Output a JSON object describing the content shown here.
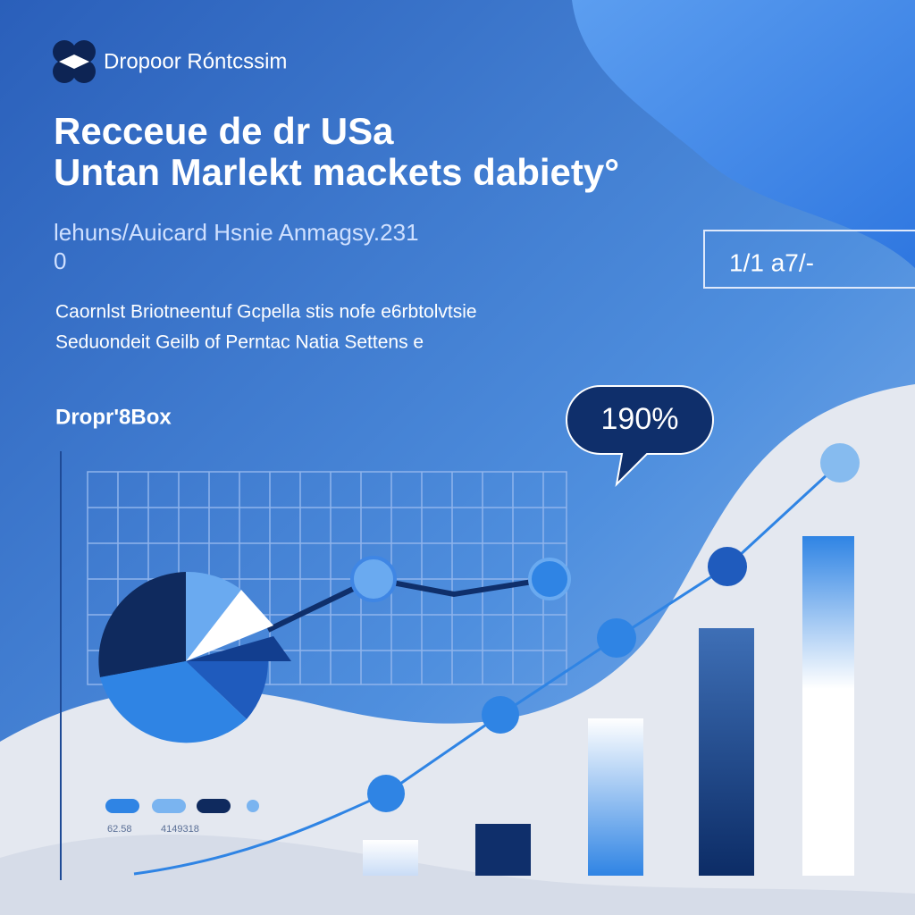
{
  "brand": "Dropoor Róntcssim",
  "title": {
    "line1": "Recceue de dr USa",
    "line2": "Untan Marlekt mackets dabiety°"
  },
  "subtitle": {
    "line1": "lehuns/Auicard Hsnie Anmagsy.231",
    "line2": "0"
  },
  "stat_box": "1/1 a7/-",
  "description": {
    "line1": "Caornlst Briotneentuf Gcpella stis nofe e6rbtolvtsie",
    "line2": "Seduondeit Geilb of Perntac Natia Settens e"
  },
  "section_label": "Dropr'8Box",
  "callout": "190%",
  "legend": {
    "label1": "62.58",
    "label2": "4149318"
  }
}
